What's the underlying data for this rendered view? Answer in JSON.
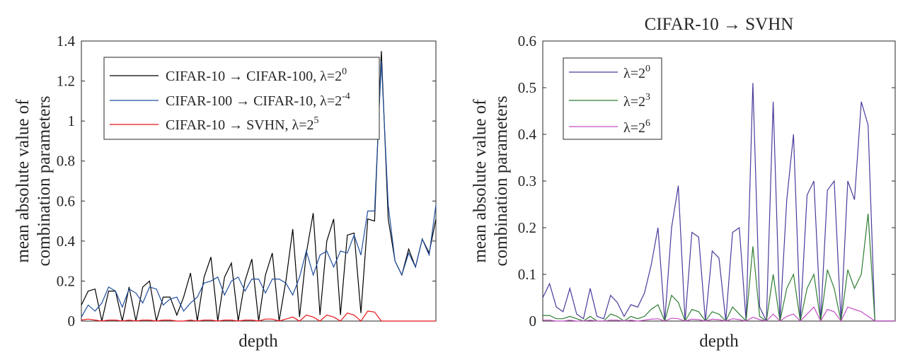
{
  "chart_data": [
    {
      "type": "line",
      "title": "",
      "xlabel": "depth",
      "ylabel": [
        "mean absolute value of",
        "combination parameters"
      ],
      "ylim": [
        0,
        1.4
      ],
      "yticks": [
        0,
        0.2,
        0.4,
        0.6,
        0.8,
        1,
        1.2,
        1.4
      ],
      "ytick_labels": [
        "0",
        "0.2",
        "0.4",
        "0.6",
        "0.8",
        "1",
        "1.2",
        "1.4"
      ],
      "x": [
        1,
        2,
        3,
        4,
        5,
        6,
        7,
        8,
        9,
        10,
        11,
        12,
        13,
        14,
        15,
        16,
        17,
        18,
        19,
        20,
        21,
        22,
        23,
        24,
        25,
        26,
        27,
        28,
        29,
        30,
        31,
        32,
        33,
        34,
        35,
        36,
        37,
        38,
        39,
        40,
        41,
        42,
        43,
        44,
        45,
        46,
        47,
        48,
        49,
        50,
        51,
        52,
        53
      ],
      "xlim": [
        1,
        53
      ],
      "legend_position": "top-left",
      "series": [
        {
          "name": "CIFAR-10 → CIFAR-100, λ=2",
          "sup": "0",
          "color": "#000000",
          "values": [
            0.08,
            0.15,
            0.16,
            0.0,
            0.15,
            0.15,
            0.0,
            0.17,
            0.0,
            0.17,
            0.2,
            0.0,
            0.12,
            0.12,
            0.03,
            0.12,
            0.24,
            0.0,
            0.22,
            0.32,
            0.0,
            0.22,
            0.29,
            0.0,
            0.2,
            0.31,
            0.0,
            0.23,
            0.34,
            0.0,
            0.2,
            0.46,
            0.02,
            0.34,
            0.54,
            0.03,
            0.4,
            0.51,
            0.03,
            0.43,
            0.44,
            0.04,
            0.51,
            0.5,
            1.35,
            0.51,
            0.3,
            0.23,
            0.36,
            0.27,
            0.41,
            0.34,
            0.51
          ]
        },
        {
          "name": "CIFAR-100 → CIFAR-10, λ=2",
          "sup": "-4",
          "color": "#1f4e9c",
          "values": [
            0.02,
            0.08,
            0.05,
            0.09,
            0.17,
            0.15,
            0.07,
            0.16,
            0.14,
            0.09,
            0.17,
            0.16,
            0.08,
            0.11,
            0.12,
            0.05,
            0.09,
            0.12,
            0.19,
            0.2,
            0.22,
            0.13,
            0.2,
            0.22,
            0.15,
            0.21,
            0.21,
            0.14,
            0.21,
            0.21,
            0.19,
            0.13,
            0.22,
            0.35,
            0.23,
            0.33,
            0.35,
            0.27,
            0.35,
            0.34,
            0.43,
            0.33,
            0.55,
            0.55,
            1.3,
            0.58,
            0.3,
            0.23,
            0.34,
            0.27,
            0.41,
            0.33,
            0.58
          ]
        },
        {
          "name": "CIFAR-10 → SVHN, λ=2",
          "sup": "5",
          "color": "#e8141b",
          "values": [
            0.005,
            0.01,
            0.005,
            0.0,
            0.005,
            0.005,
            0.0,
            0.005,
            0.0,
            0.005,
            0.005,
            0.0,
            0.005,
            0.005,
            0.0,
            0.0,
            0.005,
            0.0,
            0.005,
            0.005,
            0.0,
            0.005,
            0.005,
            0.0,
            0.005,
            0.005,
            0.0,
            0.01,
            0.01,
            0.0,
            0.01,
            0.02,
            0.0,
            0.03,
            0.02,
            0.0,
            0.03,
            0.02,
            0.0,
            0.04,
            0.03,
            0.0,
            0.05,
            0.045,
            0.0,
            0.0,
            0.0,
            0.0,
            0.0,
            0.0,
            0.0,
            0.0,
            0.0
          ]
        }
      ]
    },
    {
      "type": "line",
      "title": "CIFAR-10 → SVHN",
      "xlabel": "depth",
      "ylabel": [
        "mean absolute value of",
        "combination parameters"
      ],
      "ylim": [
        0,
        0.6
      ],
      "yticks": [
        0,
        0.1,
        0.2,
        0.3,
        0.4,
        0.5,
        0.6
      ],
      "ytick_labels": [
        "0",
        "0.1",
        "0.2",
        "0.3",
        "0.4",
        "0.5",
        "0.6"
      ],
      "x": [
        1,
        2,
        3,
        4,
        5,
        6,
        7,
        8,
        9,
        10,
        11,
        12,
        13,
        14,
        15,
        16,
        17,
        18,
        19,
        20,
        21,
        22,
        23,
        24,
        25,
        26,
        27,
        28,
        29,
        30,
        31,
        32,
        33,
        34,
        35,
        36,
        37,
        38,
        39,
        40,
        41,
        42,
        43,
        44,
        45,
        46,
        47,
        48,
        49,
        50,
        51,
        52,
        53
      ],
      "xlim": [
        1,
        53
      ],
      "legend_position": "top-left",
      "series": [
        {
          "name": "λ=2",
          "sup": "0",
          "color": "#4b3a9b",
          "values": [
            0.05,
            0.08,
            0.03,
            0.02,
            0.07,
            0.015,
            0.005,
            0.07,
            0.01,
            0.005,
            0.055,
            0.04,
            0.01,
            0.035,
            0.03,
            0.06,
            0.12,
            0.2,
            0.0,
            0.2,
            0.29,
            0.0,
            0.19,
            0.18,
            0.0,
            0.15,
            0.135,
            0.0,
            0.19,
            0.2,
            0.0,
            0.51,
            0.03,
            0.0,
            0.47,
            0.0,
            0.26,
            0.4,
            0.0,
            0.27,
            0.3,
            0.0,
            0.28,
            0.3,
            0.0,
            0.3,
            0.26,
            0.47,
            0.42,
            0.0,
            0.0,
            0.0,
            0.0
          ]
        },
        {
          "name": "λ=2",
          "sup": "3",
          "color": "#2e7d32",
          "values": [
            0.012,
            0.012,
            0.005,
            0.005,
            0.01,
            0.005,
            0.0,
            0.01,
            0.0,
            0.0,
            0.015,
            0.01,
            0.0,
            0.01,
            0.005,
            0.01,
            0.025,
            0.035,
            0.0,
            0.055,
            0.04,
            0.0,
            0.025,
            0.02,
            0.0,
            0.02,
            0.015,
            0.0,
            0.03,
            0.015,
            0.0,
            0.16,
            0.01,
            0.0,
            0.1,
            0.0,
            0.07,
            0.1,
            0.0,
            0.07,
            0.1,
            0.0,
            0.11,
            0.07,
            0.0,
            0.11,
            0.07,
            0.1,
            0.23,
            0.0,
            0.0,
            0.0,
            0.0
          ]
        },
        {
          "name": "λ=2",
          "sup": "6",
          "color": "#c44fc4",
          "values": [
            0.002,
            0.002,
            0.0,
            0.0,
            0.002,
            0.0,
            0.0,
            0.002,
            0.0,
            0.0,
            0.002,
            0.002,
            0.0,
            0.002,
            0.0,
            0.002,
            0.004,
            0.005,
            0.0,
            0.006,
            0.005,
            0.0,
            0.004,
            0.003,
            0.0,
            0.004,
            0.003,
            0.0,
            0.005,
            0.003,
            0.0,
            0.008,
            0.003,
            0.0,
            0.015,
            0.0,
            0.01,
            0.015,
            0.0,
            0.015,
            0.03,
            0.0,
            0.025,
            0.02,
            0.0,
            0.03,
            0.025,
            0.02,
            0.01,
            0.0,
            0.0,
            0.0,
            0.0
          ]
        }
      ]
    }
  ]
}
